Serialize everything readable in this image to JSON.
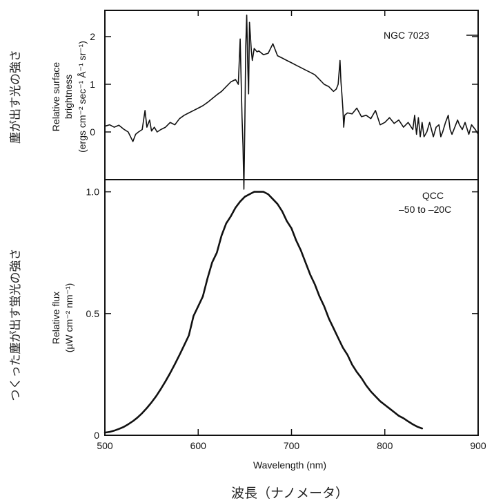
{
  "chart_data": [
    {
      "type": "line",
      "panel": "top",
      "annotation": "NGC 7023",
      "ylabel_lines": [
        "Relative surface",
        "brightness",
        "(ergs cm⁻² sec⁻¹ Å⁻¹ sr⁻¹)"
      ],
      "ylabel_jp": "塵が出す光の強さ",
      "yticks": [
        0,
        1,
        2
      ],
      "ylim": [
        -1,
        2.55
      ],
      "xlim": [
        500,
        900
      ],
      "grid": false,
      "series": [
        {
          "x": [
            500,
            505,
            510,
            515,
            520,
            525,
            530,
            533,
            536,
            540,
            543,
            545,
            548,
            550,
            553,
            556,
            560,
            565,
            570,
            575,
            580,
            585,
            590,
            595,
            600,
            605,
            610,
            615,
            620,
            625,
            630,
            635,
            640,
            643,
            645,
            647,
            648,
            649,
            650,
            651,
            652,
            653,
            654,
            655,
            656,
            657,
            658,
            660,
            663,
            665,
            670,
            675,
            680,
            685,
            690,
            695,
            700,
            705,
            710,
            715,
            720,
            725,
            730,
            735,
            740,
            745,
            748,
            750,
            752,
            753,
            754,
            755,
            756,
            757,
            760,
            765,
            770,
            775,
            780,
            785,
            790,
            795,
            800,
            805,
            810,
            815,
            820,
            825,
            830,
            832,
            834,
            836,
            838,
            840,
            842,
            845,
            848,
            850,
            852,
            855,
            858,
            860,
            862,
            865,
            868,
            870,
            872,
            875,
            878,
            880,
            883,
            886,
            890,
            893,
            897,
            900
          ],
          "y": [
            0.12,
            0.15,
            0.1,
            0.14,
            0.06,
            0.0,
            -0.2,
            -0.05,
            0.0,
            0.05,
            0.45,
            0.1,
            0.25,
            0.02,
            0.1,
            0.0,
            0.05,
            0.1,
            0.2,
            0.15,
            0.28,
            0.35,
            0.4,
            0.45,
            0.5,
            0.55,
            0.62,
            0.7,
            0.78,
            0.85,
            0.95,
            1.05,
            1.1,
            1.0,
            1.95,
            0.3,
            -0.3,
            -1.2,
            0.2,
            1.8,
            2.45,
            1.5,
            0.8,
            2.3,
            2.0,
            1.7,
            1.5,
            1.75,
            1.68,
            1.7,
            1.62,
            1.65,
            1.85,
            1.6,
            1.55,
            1.5,
            1.45,
            1.4,
            1.35,
            1.3,
            1.25,
            1.2,
            1.1,
            1.0,
            0.95,
            0.85,
            0.9,
            1.0,
            1.5,
            1.05,
            0.8,
            0.5,
            0.1,
            0.35,
            0.4,
            0.38,
            0.5,
            0.32,
            0.35,
            0.28,
            0.45,
            0.15,
            0.2,
            0.3,
            0.18,
            0.25,
            0.1,
            0.2,
            0.05,
            0.35,
            -0.05,
            0.3,
            -0.1,
            0.2,
            -0.1,
            0.0,
            0.2,
            0.05,
            -0.1,
            0.1,
            0.15,
            -0.1,
            0.0,
            0.2,
            0.35,
            0.05,
            -0.05,
            0.1,
            0.25,
            0.15,
            0.05,
            0.2,
            -0.05,
            0.15,
            0.05,
            -0.05
          ]
        }
      ]
    },
    {
      "type": "line",
      "panel": "bottom",
      "annotation_lines": [
        "QCC",
        "–50 to –20C"
      ],
      "ylabel_lines": [
        "Relative flux",
        "(µW cm⁻² nm⁻¹)"
      ],
      "ylabel_jp": "つくった塵が出す蛍光の強さ",
      "xlabel": "Wavelength (nm)",
      "xlabel_jp": "波長（ナノメータ）",
      "xticks": [
        500,
        600,
        700,
        800,
        900
      ],
      "yticks": [
        0,
        0.5,
        1.0
      ],
      "ytick_labels": [
        "0",
        "0.5",
        "1.0"
      ],
      "ylim": [
        0,
        1.05
      ],
      "xlim": [
        500,
        900
      ],
      "grid": false,
      "series": [
        {
          "x": [
            500,
            505,
            510,
            515,
            520,
            525,
            530,
            535,
            540,
            545,
            550,
            555,
            560,
            565,
            570,
            575,
            580,
            585,
            590,
            595,
            600,
            605,
            610,
            615,
            620,
            625,
            630,
            635,
            640,
            645,
            650,
            655,
            660,
            665,
            670,
            675,
            680,
            685,
            690,
            695,
            700,
            705,
            710,
            715,
            720,
            725,
            730,
            735,
            740,
            745,
            750,
            755,
            760,
            765,
            770,
            775,
            780,
            785,
            790,
            795,
            800,
            805,
            810,
            815,
            820,
            825,
            830,
            835,
            840
          ],
          "y": [
            0.011,
            0.014,
            0.019,
            0.026,
            0.034,
            0.045,
            0.058,
            0.073,
            0.091,
            0.112,
            0.135,
            0.161,
            0.19,
            0.222,
            0.256,
            0.292,
            0.33,
            0.37,
            0.41,
            0.49,
            0.53,
            0.57,
            0.645,
            0.71,
            0.75,
            0.82,
            0.87,
            0.9,
            0.935,
            0.96,
            0.98,
            0.99,
            1.0,
            1.0,
            1.0,
            0.99,
            0.97,
            0.95,
            0.92,
            0.88,
            0.85,
            0.8,
            0.76,
            0.71,
            0.66,
            0.62,
            0.57,
            0.53,
            0.48,
            0.44,
            0.4,
            0.36,
            0.33,
            0.29,
            0.26,
            0.235,
            0.205,
            0.18,
            0.16,
            0.14,
            0.125,
            0.11,
            0.095,
            0.08,
            0.07,
            0.057,
            0.045,
            0.035,
            0.028
          ]
        }
      ]
    }
  ]
}
